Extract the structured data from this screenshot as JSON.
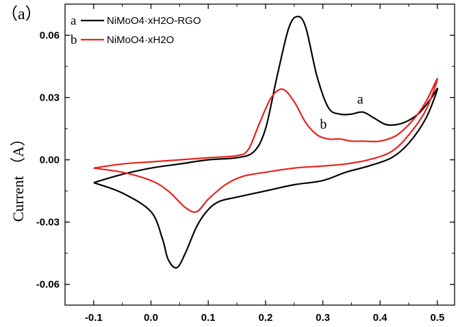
{
  "panel_label": "（a）",
  "chart_data": {
    "type": "line",
    "title": "",
    "xlabel": "",
    "ylabel": "Current （A）",
    "xlim": [
      -0.15,
      0.53
    ],
    "ylim": [
      -0.07,
      0.075
    ],
    "xticks": [
      -0.1,
      0.0,
      0.1,
      0.2,
      0.3,
      0.4,
      0.5
    ],
    "xtick_labels": [
      "-0.1",
      "0.0",
      "0.1",
      "0.2",
      "0.3",
      "0.4",
      "0.5"
    ],
    "yticks": [
      -0.06,
      -0.03,
      0.0,
      0.03,
      0.06
    ],
    "ytick_labels": [
      "-0.06",
      "-0.03",
      "0.00",
      "0.03",
      "0.06"
    ],
    "grid": false,
    "legend_position": "top-left",
    "series": [
      {
        "name": "NiMoO4·xH2O-RGO",
        "key": "a",
        "color": "#000000",
        "x": [
          -0.1,
          -0.05,
          0.0,
          0.05,
          0.1,
          0.15,
          0.18,
          0.2,
          0.22,
          0.24,
          0.255,
          0.27,
          0.29,
          0.31,
          0.33,
          0.35,
          0.37,
          0.39,
          0.41,
          0.43,
          0.45,
          0.47,
          0.49,
          0.5,
          0.48,
          0.45,
          0.42,
          0.38,
          0.34,
          0.3,
          0.25,
          0.2,
          0.15,
          0.12,
          0.1,
          0.08,
          0.06,
          0.045,
          0.03,
          0.02,
          0.0,
          -0.05,
          -0.1
        ],
        "y": [
          -0.011,
          -0.007,
          -0.004,
          -0.002,
          0.0,
          0.001,
          0.004,
          0.015,
          0.04,
          0.063,
          0.069,
          0.064,
          0.04,
          0.025,
          0.022,
          0.022,
          0.023,
          0.02,
          0.017,
          0.017,
          0.019,
          0.023,
          0.03,
          0.034,
          0.02,
          0.008,
          0.001,
          -0.003,
          -0.006,
          -0.01,
          -0.012,
          -0.015,
          -0.018,
          -0.02,
          -0.024,
          -0.032,
          -0.045,
          -0.052,
          -0.048,
          -0.038,
          -0.025,
          -0.016,
          -0.011
        ]
      },
      {
        "name": "NiMoO4·xH2O",
        "key": "b",
        "color": "#e8201a",
        "x": [
          -0.1,
          -0.05,
          0.0,
          0.05,
          0.1,
          0.15,
          0.17,
          0.19,
          0.21,
          0.23,
          0.25,
          0.27,
          0.29,
          0.31,
          0.33,
          0.35,
          0.37,
          0.4,
          0.43,
          0.46,
          0.48,
          0.5,
          0.48,
          0.45,
          0.42,
          0.38,
          0.34,
          0.3,
          0.25,
          0.2,
          0.16,
          0.13,
          0.1,
          0.08,
          0.06,
          0.03,
          0.0,
          -0.05,
          -0.1
        ],
        "y": [
          -0.004,
          -0.002,
          -0.001,
          0.0,
          0.001,
          0.002,
          0.005,
          0.018,
          0.03,
          0.034,
          0.028,
          0.018,
          0.012,
          0.01,
          0.01,
          0.009,
          0.009,
          0.009,
          0.012,
          0.02,
          0.028,
          0.039,
          0.024,
          0.012,
          0.004,
          0.0,
          -0.002,
          -0.003,
          -0.004,
          -0.006,
          -0.008,
          -0.012,
          -0.019,
          -0.025,
          -0.023,
          -0.015,
          -0.01,
          -0.006,
          -0.004
        ]
      }
    ],
    "annotations": [
      {
        "text": "a",
        "x": 0.36,
        "y": 0.027
      },
      {
        "text": "b",
        "x": 0.295,
        "y": 0.015
      }
    ]
  }
}
